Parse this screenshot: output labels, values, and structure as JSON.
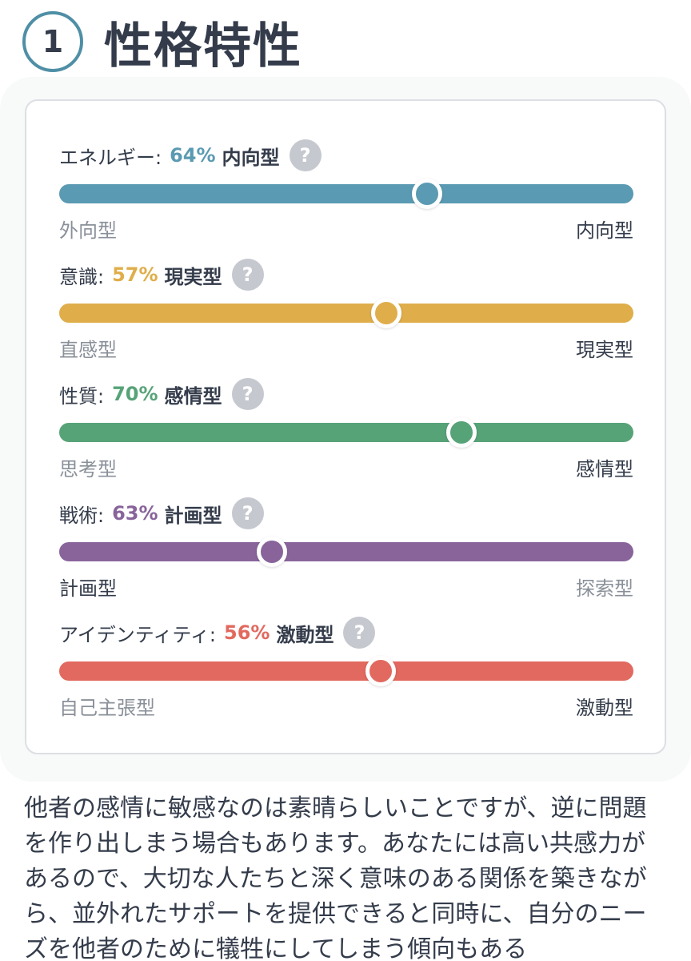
{
  "section": {
    "number": "1",
    "title": "性格特性"
  },
  "help_icon": "?",
  "traits": [
    {
      "name": "エネルギー:",
      "percent": "64%",
      "type": "内向型",
      "left_label": "外向型",
      "right_label": "内向型",
      "value": 0.64,
      "color": "#5a9ab2",
      "dominant": "right"
    },
    {
      "name": "意識:",
      "percent": "57%",
      "type": "現実型",
      "left_label": "直感型",
      "right_label": "現実型",
      "value": 0.57,
      "color": "#dfae4b",
      "dominant": "right"
    },
    {
      "name": "性質:",
      "percent": "70%",
      "type": "感情型",
      "left_label": "思考型",
      "right_label": "感情型",
      "value": 0.7,
      "color": "#57a378",
      "dominant": "right"
    },
    {
      "name": "戦術:",
      "percent": "63%",
      "type": "計画型",
      "left_label": "計画型",
      "right_label": "探索型",
      "value": 0.63,
      "color": "#88649b",
      "dominant": "left"
    },
    {
      "name": "アイデンティティ:",
      "percent": "56%",
      "type": "激動型",
      "left_label": "自己主張型",
      "right_label": "激動型",
      "value": 0.56,
      "color": "#e2695f",
      "dominant": "right"
    }
  ],
  "description": "他者の感情に敏感なのは素晴らしいことですが、逆に問題を作り出しまう場合もあります。あなたには高い共感力があるので、大切な人たちと深く意味のある関係を築きながら、並外れたサポートを提供できると同時に、自分のニーズを他者のために犠牲にしてしまう傾向もある"
}
